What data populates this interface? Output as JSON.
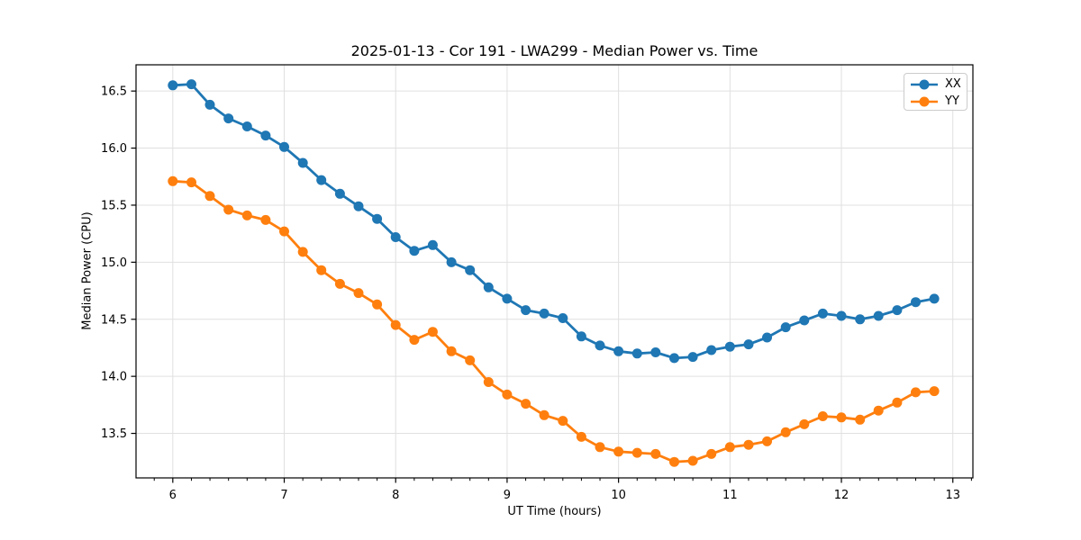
{
  "chart_data": {
    "type": "line",
    "title": "2025-01-13 - Cor 191 - LWA299 - Median Power vs. Time",
    "xlabel": "UT Time (hours)",
    "ylabel": "Median Power (CPU)",
    "xlim": [
      5.67,
      13.18
    ],
    "ylim": [
      13.11,
      16.73
    ],
    "grid": true,
    "legend_position": "upper right",
    "xticks": [
      {
        "v": 6,
        "label": "6"
      },
      {
        "v": 7,
        "label": "7"
      },
      {
        "v": 8,
        "label": "8"
      },
      {
        "v": 9,
        "label": "9"
      },
      {
        "v": 10,
        "label": "10"
      },
      {
        "v": 11,
        "label": "11"
      },
      {
        "v": 12,
        "label": "12"
      },
      {
        "v": 13,
        "label": "13"
      }
    ],
    "x_minor_tick_step": 0.16667,
    "yticks": [
      {
        "v": 13.5,
        "label": "13.5"
      },
      {
        "v": 14.0,
        "label": "14.0"
      },
      {
        "v": 14.5,
        "label": "14.5"
      },
      {
        "v": 15.0,
        "label": "15.0"
      },
      {
        "v": 15.5,
        "label": "15.5"
      },
      {
        "v": 16.0,
        "label": "16.0"
      },
      {
        "v": 16.5,
        "label": "16.5"
      }
    ],
    "x": [
      6.0,
      6.167,
      6.333,
      6.5,
      6.667,
      6.833,
      7.0,
      7.167,
      7.333,
      7.5,
      7.667,
      7.833,
      8.0,
      8.167,
      8.333,
      8.5,
      8.667,
      8.833,
      9.0,
      9.167,
      9.333,
      9.5,
      9.667,
      9.833,
      10.0,
      10.167,
      10.333,
      10.5,
      10.667,
      10.833,
      11.0,
      11.167,
      11.333,
      11.5,
      11.667,
      11.833,
      12.0,
      12.167,
      12.333,
      12.5,
      12.667,
      12.833
    ],
    "series": [
      {
        "name": "XX",
        "color": "#1f77b4",
        "values": [
          16.55,
          16.56,
          16.38,
          16.26,
          16.19,
          16.11,
          16.01,
          15.87,
          15.72,
          15.6,
          15.49,
          15.38,
          15.22,
          15.1,
          15.15,
          15.0,
          14.93,
          14.78,
          14.68,
          14.58,
          14.55,
          14.51,
          14.35,
          14.27,
          14.22,
          14.2,
          14.21,
          14.16,
          14.17,
          14.23,
          14.26,
          14.28,
          14.34,
          14.43,
          14.49,
          14.55,
          14.53,
          14.5,
          14.53,
          14.58,
          14.65,
          14.68
        ]
      },
      {
        "name": "YY",
        "color": "#ff7f0e",
        "values": [
          15.71,
          15.7,
          15.58,
          15.46,
          15.41,
          15.37,
          15.27,
          15.09,
          14.93,
          14.81,
          14.73,
          14.63,
          14.45,
          14.32,
          14.39,
          14.22,
          14.14,
          13.95,
          13.84,
          13.76,
          13.66,
          13.61,
          13.47,
          13.38,
          13.34,
          13.33,
          13.32,
          13.25,
          13.26,
          13.32,
          13.38,
          13.4,
          13.43,
          13.51,
          13.58,
          13.65,
          13.64,
          13.62,
          13.7,
          13.77,
          13.86,
          13.87
        ]
      }
    ],
    "colors": {
      "grid": "#e0e0e0",
      "spine": "#000000",
      "text": "#000000",
      "background": "#ffffff"
    }
  }
}
